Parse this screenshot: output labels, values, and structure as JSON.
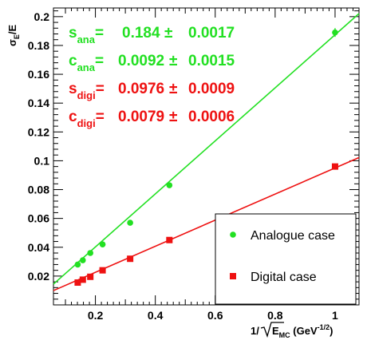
{
  "chart_data": {
    "type": "scatter",
    "xlabel": {
      "prefix": "1/",
      "sqrt_base": "E",
      "sqrt_sub": "MC",
      "unit_open": " (GeV",
      "unit_sup": "-1/2",
      "unit_close": ")"
    },
    "ylabel": {
      "base": "σ",
      "sub": "E",
      "rest": "/E"
    },
    "xlim": [
      0.06,
      1.08
    ],
    "ylim": [
      0,
      0.206
    ],
    "xticks": [
      "0.2",
      "0.4",
      "0.6",
      "0.8",
      "1"
    ],
    "yticks": [
      "0.02",
      "0.04",
      "0.06",
      "0.08",
      "0.1",
      "0.12",
      "0.14",
      "0.16",
      "0.18",
      "0.2"
    ],
    "xtick_values": [
      0.2,
      0.4,
      0.6,
      0.8,
      1.0
    ],
    "ytick_values": [
      0.02,
      0.04,
      0.06,
      0.08,
      0.1,
      0.12,
      0.14,
      0.16,
      0.18,
      0.2
    ],
    "series": [
      {
        "name": "Analogue case",
        "color": "#22e022",
        "marker": "circle",
        "x": [
          0.141,
          0.158,
          0.183,
          0.224,
          0.316,
          0.447,
          1.0
        ],
        "y": [
          0.028,
          0.031,
          0.036,
          0.042,
          0.057,
          0.083,
          0.189
        ],
        "yerr": [
          0,
          0,
          0,
          0,
          0,
          0,
          0.003
        ],
        "fit": {
          "slope": 0.184,
          "intercept": 0.0034
        }
      },
      {
        "name": "Digital case",
        "color": "#ee1111",
        "marker": "square",
        "x": [
          0.141,
          0.158,
          0.183,
          0.224,
          0.316,
          0.447,
          1.0
        ],
        "y": [
          0.0155,
          0.0175,
          0.0195,
          0.024,
          0.032,
          0.045,
          0.096
        ],
        "yerr": [
          0,
          0,
          0,
          0,
          0,
          0,
          0
        ],
        "fit": {
          "slope": 0.0905,
          "intercept": 0.0045
        }
      }
    ],
    "annotations": [
      {
        "name": "s",
        "sub": "ana",
        "value": "0.184",
        "pm": "±",
        "err": "0.0017",
        "color": "#22e022"
      },
      {
        "name": "c",
        "sub": "ana",
        "value": "0.0092",
        "pm": "±",
        "err": "0.0015",
        "color": "#22e022"
      },
      {
        "name": "s",
        "sub": "digi",
        "value": "0.0976",
        "pm": "±",
        "err": "0.0009",
        "color": "#ee1111"
      },
      {
        "name": "c",
        "sub": "digi",
        "value": "0.0079",
        "pm": "±",
        "err": "0.0006",
        "color": "#ee1111"
      }
    ],
    "legend": {
      "position": "bottom-right",
      "entries": [
        "Analogue case",
        "Digital case"
      ]
    },
    "grid": false
  }
}
